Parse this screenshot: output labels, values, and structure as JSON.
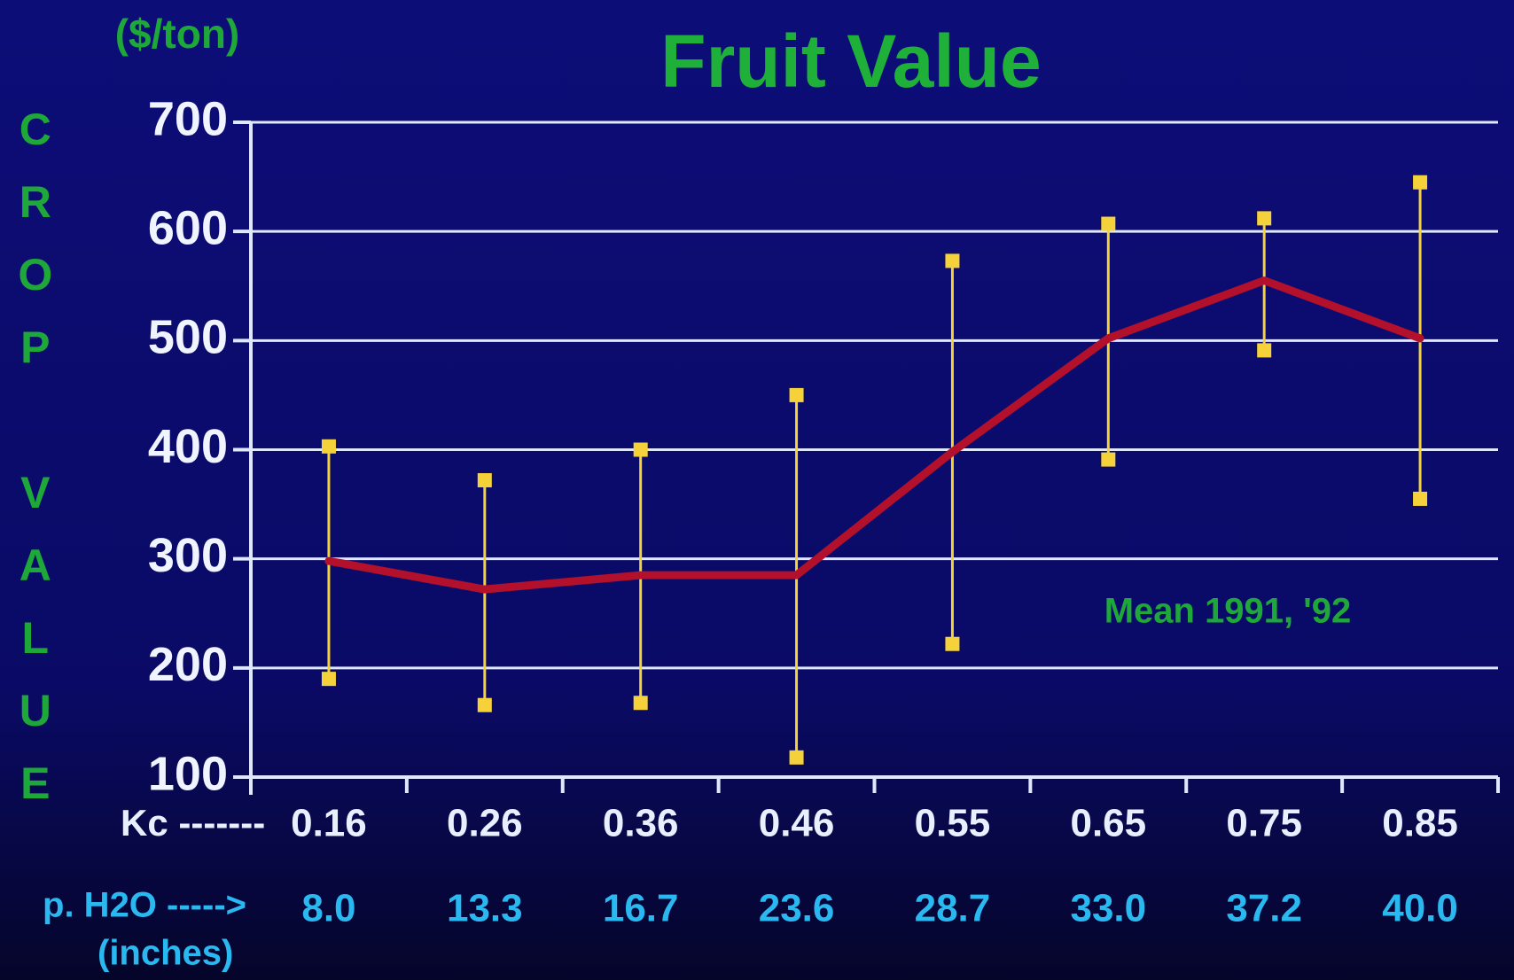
{
  "chart_data": {
    "type": "line",
    "title": "Fruit Value",
    "y_unit": "($/ton)",
    "y_label": "CROP VALUE",
    "x_label": "Kc -------",
    "x2_label": "p. H2O ----->",
    "x2_unit": "(inches)",
    "annotation": "Mean 1991, '92",
    "categories": [
      "0.16",
      "0.26",
      "0.36",
      "0.46",
      "0.55",
      "0.65",
      "0.75",
      "0.85"
    ],
    "categories2": [
      "8.0",
      "13.3",
      "16.7",
      "23.6",
      "28.7",
      "33.0",
      "37.2",
      "40.0"
    ],
    "series": [
      {
        "color": "#b3102c",
        "error_color": "#f5d23a",
        "values": [
          298,
          272,
          285,
          285,
          398,
          502,
          555,
          502
        ],
        "high": [
          403,
          372,
          400,
          450,
          573,
          607,
          612,
          645
        ],
        "low": [
          190,
          166,
          168,
          118,
          222,
          391,
          491,
          355
        ]
      }
    ],
    "ylim": [
      100,
      700
    ],
    "yticks": [
      100,
      200,
      300,
      400,
      500,
      600,
      700
    ],
    "grid": true
  }
}
